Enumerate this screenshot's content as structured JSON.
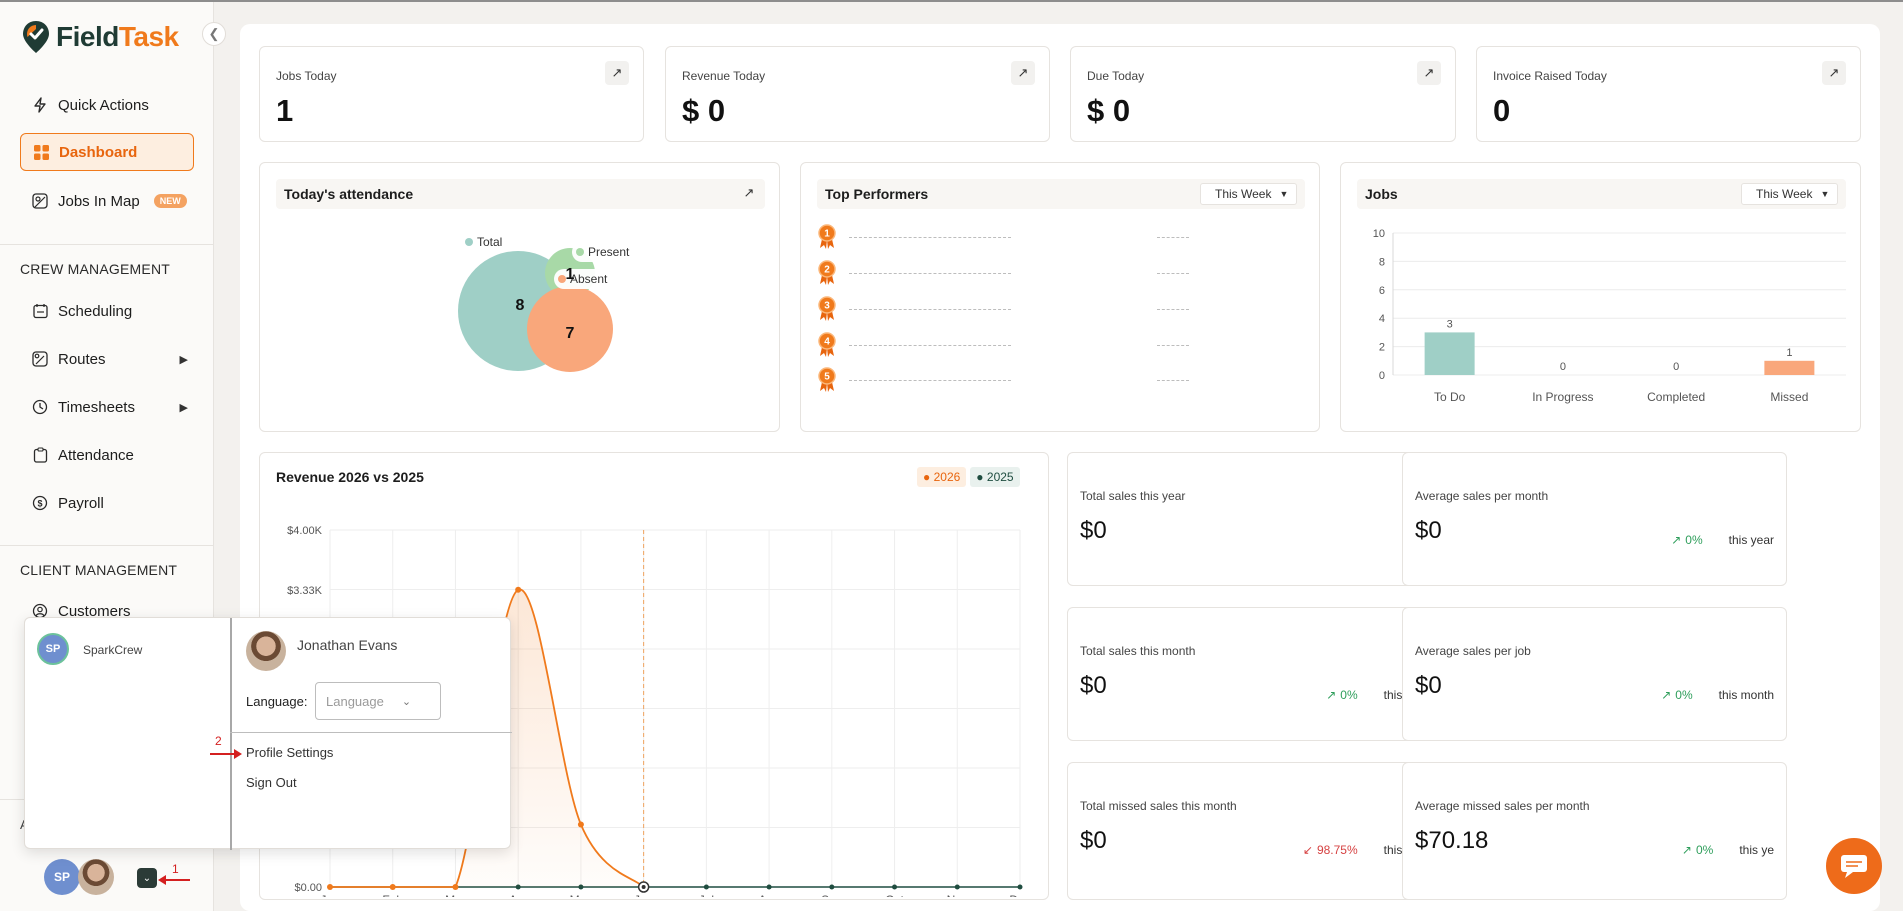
{
  "app": {
    "logo_part1": "Field",
    "logo_part2": "Task"
  },
  "sidebar": {
    "collapse_icon": "chevron-left",
    "items": [
      {
        "label": "Quick Actions",
        "icon": "bolt"
      },
      {
        "label": "Dashboard",
        "icon": "grid",
        "active": true
      },
      {
        "label": "Jobs In Map",
        "icon": "map",
        "badge": "NEW"
      }
    ],
    "crew_section": "CREW MANAGEMENT",
    "crew_items": [
      {
        "label": "Scheduling",
        "icon": "calendar"
      },
      {
        "label": "Routes",
        "icon": "route",
        "has_submenu": true
      },
      {
        "label": "Timesheets",
        "icon": "clock",
        "has_submenu": true
      },
      {
        "label": "Attendance",
        "icon": "clipboard"
      },
      {
        "label": "Payroll",
        "icon": "dollar"
      }
    ],
    "client_section": "CLIENT MANAGEMENT",
    "client_items": [
      {
        "label": "Customers",
        "icon": "user-circle"
      }
    ],
    "partial_label": "A"
  },
  "stats": [
    {
      "label": "Jobs Today",
      "value": "1"
    },
    {
      "label": "Revenue Today",
      "value": "$ 0"
    },
    {
      "label": "Due Today",
      "value": "$ 0"
    },
    {
      "label": "Invoice Raised Today",
      "value": "0"
    }
  ],
  "attendance": {
    "title": "Today's attendance",
    "legend_total": "Total",
    "legend_present": "Present",
    "legend_absent": "Absent",
    "total": "8",
    "present": "1",
    "absent": "7",
    "colors": {
      "total": "#9fcfc6",
      "present": "#a8d9a7",
      "absent": "#f9a77b"
    }
  },
  "performers": {
    "title": "Top Performers",
    "period": "This Week",
    "ranks": [
      "1",
      "2",
      "3",
      "4",
      "5"
    ],
    "placeholder": "-----"
  },
  "jobs_chart": {
    "title": "Jobs",
    "period": "This Week"
  },
  "revenue": {
    "title": "Revenue 2026 vs 2025",
    "legend": [
      "2026",
      "2025"
    ],
    "colors": {
      "2026": "#f07a1c",
      "2025": "#1f4d40"
    }
  },
  "sales": [
    {
      "label": "Total sales this year",
      "value": "$0",
      "trend": "",
      "trend_dir": "",
      "period": ""
    },
    {
      "label": "Average sales per month",
      "value": "$0",
      "trend": "0%",
      "trend_dir": "up",
      "period": "this year"
    },
    {
      "label": "Total sales this month",
      "value": "$0",
      "trend": "0%",
      "trend_dir": "up",
      "period": "this month"
    },
    {
      "label": "Average sales per job",
      "value": "$0",
      "trend": "0%",
      "trend_dir": "up",
      "period": "this month"
    },
    {
      "label": "Total missed sales this month",
      "value": "$0",
      "trend": "98.75%",
      "trend_dir": "down",
      "period": "this month"
    },
    {
      "label": "Average missed sales per month",
      "value": "$70.18",
      "trend": "0%",
      "trend_dir": "up",
      "period": "this ye"
    }
  ],
  "popup": {
    "org_initials": "SP",
    "org_name": "SparkCrew",
    "user_name": "Jonathan Evans",
    "language_label": "Language:",
    "language_placeholder": "Language",
    "profile_settings": "Profile Settings",
    "sign_out": "Sign Out",
    "annotation_1": "1",
    "annotation_2": "2"
  },
  "bottom_bar": {
    "initials": "SP"
  },
  "chart_data": [
    {
      "type": "bar",
      "title": "Jobs",
      "categories": [
        "To Do",
        "In Progress",
        "Completed",
        "Missed"
      ],
      "values": [
        3,
        0,
        0,
        1
      ],
      "colors": [
        "#9fcfc6",
        "#9fcfc6",
        "#9fcfc6",
        "#f9a77b"
      ],
      "ylim": [
        0,
        10
      ],
      "yticks": [
        0,
        2,
        4,
        6,
        8,
        10
      ],
      "grid": true
    },
    {
      "type": "line",
      "title": "Revenue 2026 vs 2025",
      "categories": [
        "Jan",
        "Feb",
        "Mar",
        "Apr",
        "May",
        "Jun",
        "Jul",
        "Aug",
        "Sep",
        "Oct",
        "Nov",
        "Dec"
      ],
      "series": [
        {
          "name": "2026",
          "values": [
            0,
            0,
            0,
            3330,
            700,
            0,
            null,
            null,
            null,
            null,
            null,
            null
          ],
          "color": "#f07a1c"
        },
        {
          "name": "2025",
          "values": [
            0,
            0,
            0,
            0,
            0,
            0,
            0,
            0,
            0,
            0,
            0,
            0
          ],
          "color": "#1f4d40"
        }
      ],
      "ylim": [
        0,
        4000
      ],
      "yticks": [
        "$0.00",
        "$3.33K",
        "$4.00K"
      ],
      "ytick_values": [
        0,
        3330,
        4000
      ],
      "current_month": "Jun",
      "grid": true,
      "legend": "top-right"
    }
  ]
}
